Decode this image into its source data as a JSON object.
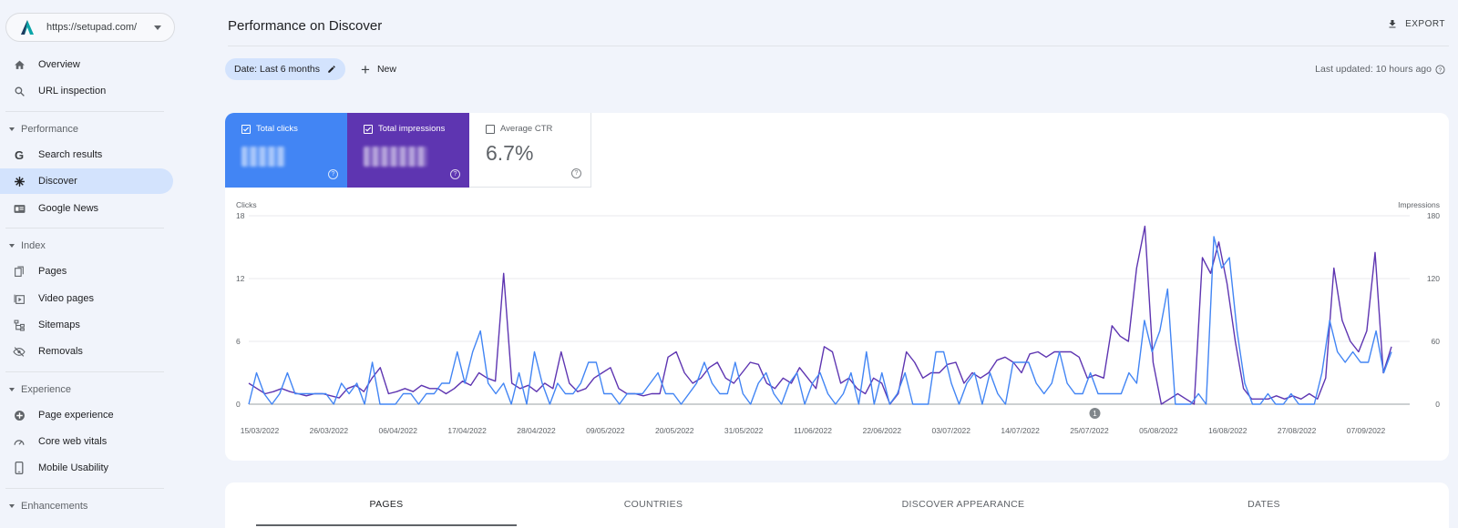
{
  "property": {
    "url": "https://setupad.com/"
  },
  "sidebar": {
    "items": [
      {
        "key": "overview",
        "label": "Overview",
        "icon": "home-icon"
      },
      {
        "key": "url-inspection",
        "label": "URL inspection",
        "icon": "search-icon"
      },
      {
        "key": "search-results",
        "label": "Search results",
        "icon": "google-g-icon"
      },
      {
        "key": "discover",
        "label": "Discover",
        "icon": "asterisk-icon",
        "active": true
      },
      {
        "key": "google-news",
        "label": "Google News",
        "icon": "news-icon"
      },
      {
        "key": "pages",
        "label": "Pages",
        "icon": "pages-icon"
      },
      {
        "key": "video-pages",
        "label": "Video pages",
        "icon": "video-icon"
      },
      {
        "key": "sitemaps",
        "label": "Sitemaps",
        "icon": "sitemap-icon"
      },
      {
        "key": "removals",
        "label": "Removals",
        "icon": "eye-off-icon"
      },
      {
        "key": "page-experience",
        "label": "Page experience",
        "icon": "plus-circle-icon"
      },
      {
        "key": "core-web-vitals",
        "label": "Core web vitals",
        "icon": "gauge-icon"
      },
      {
        "key": "mobile-usability",
        "label": "Mobile Usability",
        "icon": "phone-icon"
      }
    ],
    "sections": {
      "performance": "Performance",
      "index": "Index",
      "experience": "Experience",
      "enhancements": "Enhancements"
    }
  },
  "header": {
    "title": "Performance on Discover",
    "export_label": "EXPORT"
  },
  "filters": {
    "date_chip": "Date: Last 6 months",
    "new_label": "New",
    "last_updated": "Last updated: 10 hours ago"
  },
  "metrics": {
    "clicks_label": "Total clicks",
    "impressions_label": "Total impressions",
    "ctr_label": "Average CTR",
    "ctr_value": "6.7%",
    "colors": {
      "clicks": "#4285f4",
      "impressions": "#5e35b1"
    }
  },
  "chart_data": {
    "type": "line",
    "ylabel_left": "Clicks",
    "ylabel_right": "Impressions",
    "left_ticks": [
      "18",
      "12",
      "6",
      "0"
    ],
    "right_ticks": [
      "180",
      "120",
      "60",
      "0"
    ],
    "ylim_left": [
      0,
      18
    ],
    "ylim_right": [
      0,
      180
    ],
    "x_tick_labels": [
      "15/03/2022",
      "26/03/2022",
      "06/04/2022",
      "17/04/2022",
      "28/04/2022",
      "09/05/2022",
      "20/05/2022",
      "31/05/2022",
      "11/06/2022",
      "22/06/2022",
      "03/07/2022",
      "14/07/2022",
      "25/07/2022",
      "05/08/2022",
      "16/08/2022",
      "27/08/2022",
      "07/09/2022"
    ],
    "annotation": {
      "label": "1",
      "date": "25/07/2022"
    },
    "series": [
      {
        "name": "Total clicks",
        "axis": "left",
        "color": "#4285f4",
        "values": [
          0,
          3,
          1,
          0,
          1,
          3,
          1,
          1,
          1,
          1,
          1,
          0,
          2,
          1,
          2,
          0,
          4,
          0,
          0,
          0,
          1,
          1,
          0,
          1,
          1,
          2,
          2,
          5,
          2,
          5,
          7,
          2,
          1,
          2,
          0,
          3,
          0,
          5,
          2,
          0,
          2,
          1,
          1,
          2,
          4,
          4,
          1,
          1,
          0,
          1,
          1,
          1,
          2,
          3,
          1,
          1,
          0,
          1,
          2,
          4,
          2,
          1,
          1,
          4,
          1,
          0,
          2,
          3,
          1,
          0,
          2,
          3,
          0,
          2,
          3,
          1,
          0,
          1,
          3,
          0,
          5,
          0,
          3,
          0,
          1,
          3,
          0,
          0,
          0,
          5,
          5,
          2,
          0,
          2,
          3,
          0,
          3,
          1,
          0,
          4,
          4,
          4,
          2,
          1,
          2,
          5,
          2,
          1,
          1,
          3,
          1,
          1,
          1,
          1,
          3,
          2,
          8,
          5,
          7,
          11,
          0,
          0,
          0,
          1,
          0,
          16,
          13,
          14,
          7,
          2,
          0,
          0,
          1,
          0,
          0,
          1,
          0,
          0,
          0,
          3,
          8,
          5,
          4,
          5,
          4,
          4,
          7,
          3,
          5
        ],
        "note": "Approximate daily values; left axis 0–18."
      },
      {
        "name": "Total impressions",
        "axis": "right",
        "color": "#5e35b1",
        "values": [
          20,
          15,
          10,
          12,
          15,
          12,
          10,
          8,
          10,
          10,
          8,
          6,
          15,
          18,
          12,
          25,
          35,
          10,
          12,
          15,
          12,
          18,
          15,
          15,
          10,
          15,
          22,
          18,
          30,
          25,
          22,
          125,
          20,
          15,
          18,
          12,
          20,
          15,
          50,
          20,
          12,
          15,
          25,
          30,
          35,
          15,
          10,
          10,
          8,
          10,
          10,
          45,
          50,
          30,
          20,
          25,
          35,
          40,
          25,
          20,
          30,
          40,
          38,
          20,
          15,
          25,
          20,
          35,
          25,
          15,
          55,
          50,
          20,
          25,
          15,
          10,
          25,
          20,
          0,
          10,
          50,
          40,
          25,
          30,
          30,
          38,
          40,
          20,
          30,
          25,
          30,
          42,
          45,
          40,
          30,
          48,
          50,
          45,
          50,
          50,
          50,
          45,
          25,
          28,
          25,
          75,
          65,
          60,
          130,
          170,
          40,
          0,
          5,
          10,
          5,
          0,
          140,
          125,
          155,
          115,
          60,
          15,
          5,
          5,
          5,
          8,
          5,
          8,
          5,
          10,
          5,
          25,
          130,
          80,
          60,
          50,
          70,
          145,
          30,
          55
        ],
        "note": "Approximate daily values; right axis 0–180."
      }
    ]
  },
  "tabs": [
    {
      "label": "PAGES",
      "active": true
    },
    {
      "label": "COUNTRIES"
    },
    {
      "label": "DISCOVER APPEARANCE"
    },
    {
      "label": "DATES"
    }
  ]
}
